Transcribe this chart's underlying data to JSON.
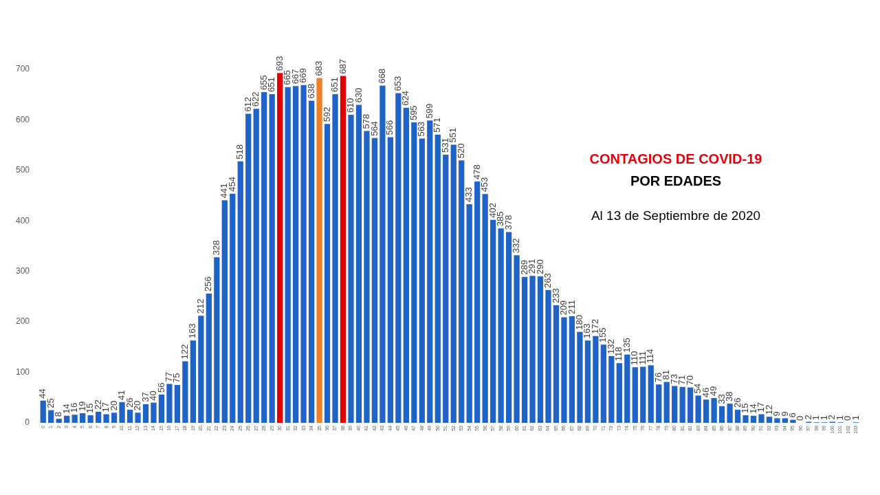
{
  "chart_data": {
    "type": "bar",
    "title": "CONTAGIOS DE COVID-19",
    "subtitle": "POR EDADES",
    "annotations": [
      "Al 13 de Septiembre de 2020"
    ],
    "categories": [
      "0",
      "1",
      "2",
      "3",
      "4",
      "5",
      "6",
      "7",
      "8",
      "9",
      "10",
      "11",
      "12",
      "13",
      "14",
      "15",
      "16",
      "17",
      "18",
      "19",
      "20",
      "21",
      "22",
      "23",
      "24",
      "25",
      "26",
      "27",
      "28",
      "29",
      "30",
      "31",
      "32",
      "33",
      "34",
      "35",
      "36",
      "37",
      "38",
      "39",
      "40",
      "41",
      "42",
      "43",
      "44",
      "45",
      "46",
      "47",
      "48",
      "49",
      "50",
      "51",
      "52",
      "53",
      "54",
      "55",
      "56",
      "57",
      "58",
      "59",
      "60",
      "61",
      "62",
      "63",
      "64",
      "65",
      "66",
      "67",
      "68",
      "69",
      "70",
      "71",
      "72",
      "73",
      "74",
      "75",
      "76",
      "77",
      "78",
      "79",
      "80",
      "81",
      "82",
      "83",
      "84",
      "85",
      "86",
      "87",
      "88",
      "89",
      "90",
      "91",
      "92",
      "93",
      "94",
      "95",
      "96",
      "97",
      "98",
      "99",
      "100",
      "101",
      "102",
      "103"
    ],
    "values": [
      44,
      25,
      8,
      14,
      16,
      19,
      15,
      22,
      17,
      20,
      41,
      26,
      20,
      37,
      40,
      56,
      77,
      75,
      122,
      163,
      212,
      256,
      328,
      441,
      454,
      518,
      612,
      622,
      655,
      651,
      693,
      665,
      667,
      669,
      638,
      683,
      592,
      651,
      687,
      610,
      630,
      578,
      564,
      668,
      566,
      653,
      624,
      595,
      563,
      599,
      571,
      531,
      551,
      520,
      433,
      478,
      453,
      402,
      385,
      378,
      332,
      289,
      291,
      290,
      263,
      233,
      209,
      211,
      180,
      163,
      172,
      155,
      132,
      118,
      135,
      110,
      111,
      114,
      76,
      81,
      73,
      71,
      70,
      54,
      46,
      49,
      33,
      38,
      26,
      15,
      14,
      17,
      12,
      9,
      9,
      6,
      0,
      2,
      1,
      1,
      2,
      1,
      0,
      1
    ],
    "colors": [
      "#1f63c6",
      "#1f63c6",
      "#1f63c6",
      "#1f63c6",
      "#1f63c6",
      "#1f63c6",
      "#1f63c6",
      "#1f63c6",
      "#1f63c6",
      "#1f63c6",
      "#1f63c6",
      "#1f63c6",
      "#1f63c6",
      "#1f63c6",
      "#1f63c6",
      "#1f63c6",
      "#1f63c6",
      "#1f63c6",
      "#1f63c6",
      "#1f63c6",
      "#1f63c6",
      "#1f63c6",
      "#1f63c6",
      "#1f63c6",
      "#1f63c6",
      "#1f63c6",
      "#1f63c6",
      "#1f63c6",
      "#1f63c6",
      "#1f63c6",
      "#e00000",
      "#1f63c6",
      "#1f63c6",
      "#1f63c6",
      "#1f63c6",
      "#f07f2a",
      "#1f63c6",
      "#1f63c6",
      "#e00000",
      "#1f63c6",
      "#1f63c6",
      "#1f63c6",
      "#1f63c6",
      "#1f63c6",
      "#1f63c6",
      "#1f63c6",
      "#1f63c6",
      "#1f63c6",
      "#1f63c6",
      "#1f63c6",
      "#1f63c6",
      "#1f63c6",
      "#1f63c6",
      "#1f63c6",
      "#1f63c6",
      "#1f63c6",
      "#1f63c6",
      "#1f63c6",
      "#1f63c6",
      "#1f63c6",
      "#1f63c6",
      "#1f63c6",
      "#1f63c6",
      "#1f63c6",
      "#1f63c6",
      "#1f63c6",
      "#1f63c6",
      "#1f63c6",
      "#1f63c6",
      "#1f63c6",
      "#1f63c6",
      "#1f63c6",
      "#1f63c6",
      "#1f63c6",
      "#1f63c6",
      "#1f63c6",
      "#1f63c6",
      "#1f63c6",
      "#1f63c6",
      "#1f63c6",
      "#1f63c6",
      "#1f63c6",
      "#1f63c6",
      "#1f63c6",
      "#1f63c6",
      "#1f63c6",
      "#1f63c6",
      "#1f63c6",
      "#1f63c6",
      "#1f63c6",
      "#1f63c6",
      "#1f63c6",
      "#1f63c6",
      "#1f63c6",
      "#1f63c6",
      "#1f63c6",
      "#1f63c6",
      "#1f63c6",
      "#1f63c6",
      "#1f63c6",
      "#1f63c6",
      "#1f63c6",
      "#1f63c6",
      "#1f63c6"
    ],
    "ylim": [
      0,
      700
    ],
    "yticks": [
      0,
      100,
      200,
      300,
      400,
      500,
      600,
      700
    ],
    "grid": false,
    "legend": false,
    "data_labels": true
  }
}
